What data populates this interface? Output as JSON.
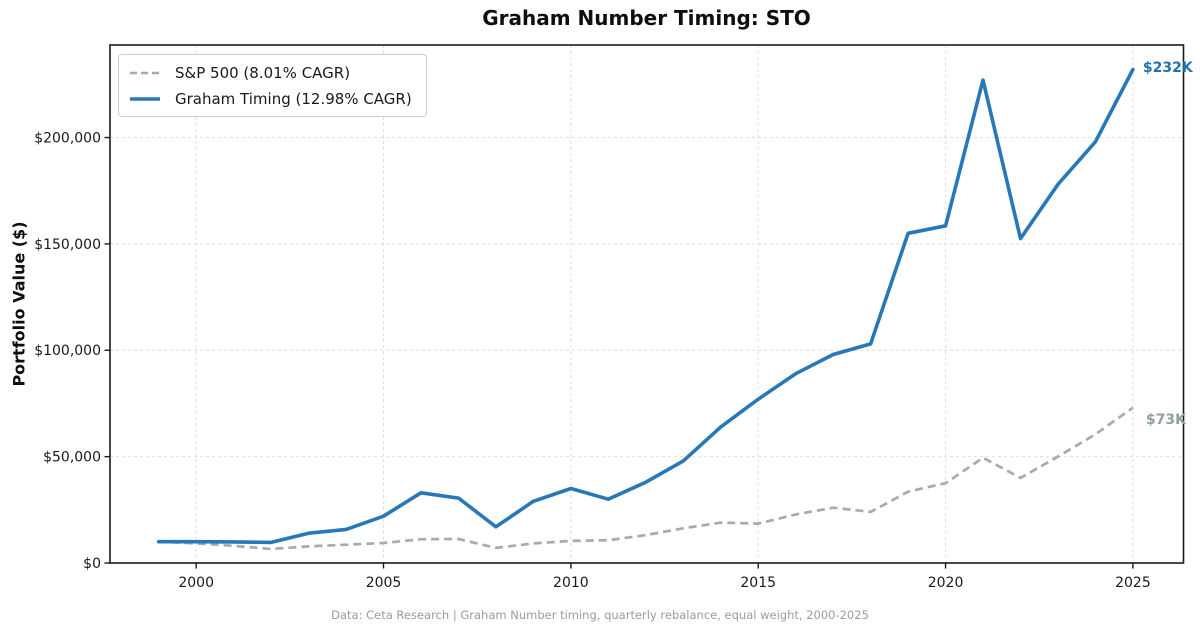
{
  "title": "Graham Number Timing: STO",
  "footer": "Data: Ceta Research | Graham Number timing, quarterly rebalance, equal weight, 2000-2025",
  "colors": {
    "graham_line": "#2878b8",
    "graham_label": "#2072ae",
    "sp500_line": "#a2adad",
    "sp500_label": "#8fa0a0",
    "grid": "#dedede",
    "frame": "#1a1a1a",
    "tick_text": "#1a1a1a"
  },
  "chart_data": {
    "type": "line",
    "title": "Graham Number Timing: STO",
    "xlabel": "",
    "ylabel": "Portfolio Value ($)",
    "grid": true,
    "legend_position": "upper left",
    "xlim": [
      1997.7,
      2026.35
    ],
    "ylim": [
      0,
      243500
    ],
    "xticks": [
      2000,
      2005,
      2010,
      2015,
      2020,
      2025
    ],
    "yticks": [
      0,
      50000,
      100000,
      150000,
      200000
    ],
    "ytick_labels": [
      "$0",
      "$50,000",
      "$100,000",
      "$150,000",
      "$200,000"
    ],
    "x": [
      1999,
      2000,
      2001,
      2002,
      2003,
      2004,
      2005,
      2006,
      2007,
      2008,
      2009,
      2010,
      2011,
      2012,
      2013,
      2014,
      2015,
      2016,
      2017,
      2018,
      2019,
      2020,
      2021,
      2022,
      2023,
      2024,
      2025
    ],
    "series": [
      {
        "name": "S&P 500 (8.01% CAGR)",
        "style": "dashed",
        "color": "#a2adad",
        "end_label": "$73K",
        "end_label_color": "#8fa0a0",
        "values": [
          10000,
          9200,
          8100,
          6600,
          7800,
          8600,
          9400,
          11200,
          11300,
          7100,
          9200,
          10400,
          10700,
          13100,
          16300,
          19000,
          18500,
          22800,
          26000,
          24000,
          33500,
          37500,
          49500,
          40000,
          50000,
          60500,
          73000
        ]
      },
      {
        "name": "Graham Timing (12.98% CAGR)",
        "style": "solid",
        "color": "#2878b8",
        "end_label": "$232K",
        "end_label_color": "#2072ae",
        "values": [
          10000,
          10000,
          9900,
          9700,
          14000,
          15800,
          22000,
          33000,
          30500,
          17000,
          29000,
          35000,
          30000,
          38000,
          48000,
          64000,
          77000,
          89000,
          98000,
          103000,
          155000,
          158500,
          227000,
          152500,
          178000,
          198000,
          232000
        ]
      }
    ]
  }
}
